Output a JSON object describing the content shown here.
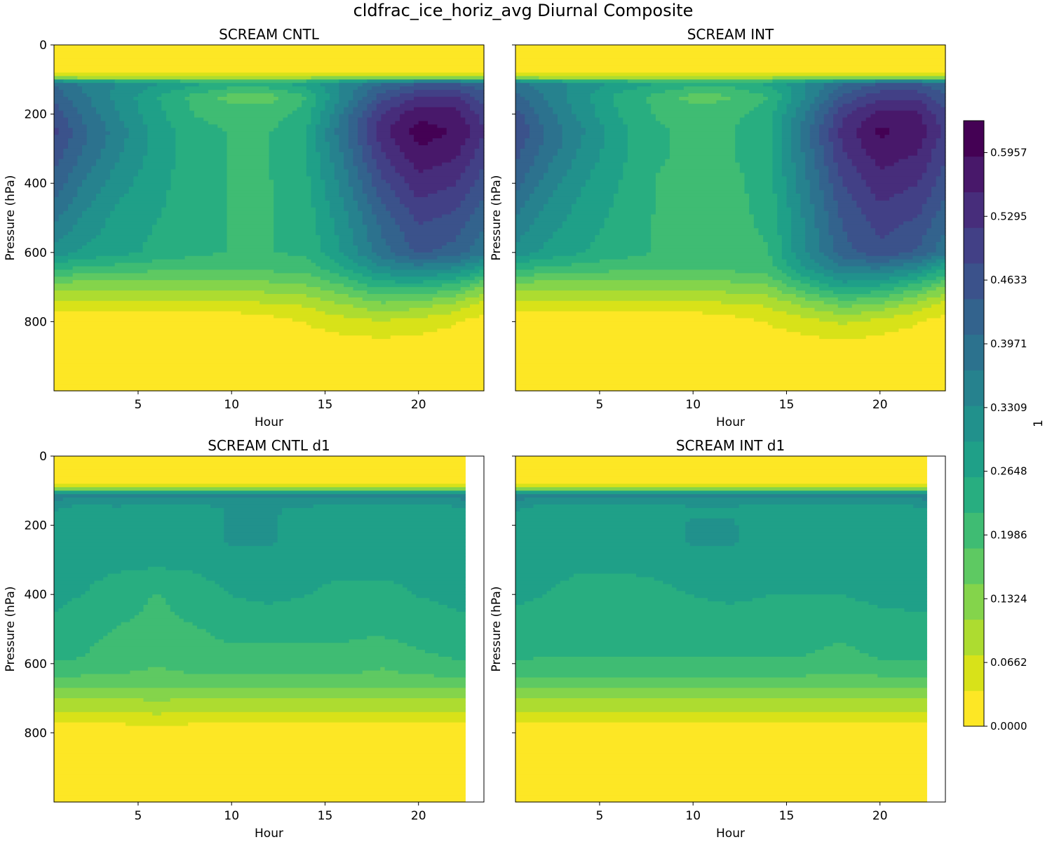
{
  "figure": {
    "suptitle": "cldfrac_ice_horiz_avg Diurnal Composite"
  },
  "chart_data": [
    {
      "type": "heatmap",
      "title": "SCREAM CNTL",
      "xlabel": "Hour",
      "ylabel": "Pressure (hPa)",
      "x_ticks": [
        5,
        10,
        15,
        20
      ],
      "y_ticks": [
        0,
        200,
        400,
        600,
        800
      ],
      "xlim": [
        0.5,
        23.5
      ],
      "ylim": [
        1000,
        0
      ],
      "data_xmax": 23.5,
      "x": [
        0.5,
        2,
        4,
        6,
        8,
        10,
        12,
        14,
        16,
        18,
        20,
        22,
        23.5
      ],
      "p": [
        0,
        80,
        95,
        110,
        150,
        200,
        250,
        300,
        400,
        500,
        600,
        650,
        700,
        750,
        800,
        900,
        1000
      ],
      "z": [
        [
          0.0,
          0.0,
          0.0,
          0.0,
          0.0,
          0.0,
          0.0,
          0.0,
          0.0,
          0.0,
          0.0,
          0.0,
          0.0
        ],
        [
          0.02,
          0.02,
          0.02,
          0.02,
          0.02,
          0.02,
          0.02,
          0.02,
          0.02,
          0.02,
          0.02,
          0.02,
          0.02
        ],
        [
          0.12,
          0.11,
          0.11,
          0.1,
          0.1,
          0.1,
          0.1,
          0.11,
          0.12,
          0.13,
          0.13,
          0.13,
          0.12
        ],
        [
          0.4,
          0.36,
          0.33,
          0.3,
          0.27,
          0.25,
          0.25,
          0.28,
          0.34,
          0.4,
          0.44,
          0.44,
          0.42
        ],
        [
          0.43,
          0.38,
          0.32,
          0.26,
          0.21,
          0.17,
          0.17,
          0.22,
          0.34,
          0.46,
          0.52,
          0.52,
          0.46
        ],
        [
          0.47,
          0.4,
          0.33,
          0.27,
          0.22,
          0.2,
          0.2,
          0.24,
          0.38,
          0.52,
          0.58,
          0.57,
          0.5
        ],
        [
          0.49,
          0.42,
          0.35,
          0.28,
          0.24,
          0.22,
          0.22,
          0.26,
          0.4,
          0.54,
          0.61,
          0.59,
          0.52
        ],
        [
          0.47,
          0.41,
          0.34,
          0.28,
          0.24,
          0.22,
          0.22,
          0.26,
          0.38,
          0.52,
          0.59,
          0.57,
          0.5
        ],
        [
          0.43,
          0.37,
          0.31,
          0.27,
          0.24,
          0.22,
          0.22,
          0.25,
          0.35,
          0.47,
          0.54,
          0.52,
          0.46
        ],
        [
          0.38,
          0.33,
          0.28,
          0.26,
          0.24,
          0.22,
          0.22,
          0.24,
          0.32,
          0.42,
          0.49,
          0.47,
          0.42
        ],
        [
          0.32,
          0.29,
          0.27,
          0.25,
          0.23,
          0.22,
          0.22,
          0.23,
          0.3,
          0.39,
          0.45,
          0.43,
          0.38
        ],
        [
          0.22,
          0.21,
          0.2,
          0.19,
          0.19,
          0.19,
          0.19,
          0.2,
          0.25,
          0.32,
          0.34,
          0.32,
          0.26
        ],
        [
          0.12,
          0.12,
          0.12,
          0.12,
          0.12,
          0.12,
          0.13,
          0.14,
          0.18,
          0.23,
          0.23,
          0.2,
          0.14
        ],
        [
          0.06,
          0.06,
          0.06,
          0.06,
          0.06,
          0.06,
          0.07,
          0.08,
          0.11,
          0.14,
          0.13,
          0.1,
          0.06
        ],
        [
          0.01,
          0.01,
          0.01,
          0.01,
          0.01,
          0.01,
          0.02,
          0.04,
          0.06,
          0.07,
          0.06,
          0.04,
          0.02
        ],
        [
          0.0,
          0.0,
          0.0,
          0.0,
          0.0,
          0.0,
          0.0,
          0.0,
          0.0,
          0.0,
          0.0,
          0.0,
          0.0
        ],
        [
          0.0,
          0.0,
          0.0,
          0.0,
          0.0,
          0.0,
          0.0,
          0.0,
          0.0,
          0.0,
          0.0,
          0.0,
          0.0
        ]
      ]
    },
    {
      "type": "heatmap",
      "title": "SCREAM INT",
      "xlabel": "Hour",
      "ylabel": "Pressure (hPa)",
      "x_ticks": [
        5,
        10,
        15,
        20
      ],
      "y_ticks": [
        0,
        200,
        400,
        600,
        800
      ],
      "xlim": [
        0.5,
        23.5
      ],
      "ylim": [
        1000,
        0
      ],
      "data_xmax": 23.5,
      "x": [
        0.5,
        2,
        4,
        6,
        8,
        10,
        12,
        14,
        16,
        18,
        20,
        22,
        23.5
      ],
      "p": [
        0,
        80,
        95,
        110,
        150,
        200,
        250,
        300,
        400,
        500,
        600,
        650,
        700,
        750,
        800,
        900,
        1000
      ],
      "z": [
        [
          0.0,
          0.0,
          0.0,
          0.0,
          0.0,
          0.0,
          0.0,
          0.0,
          0.0,
          0.0,
          0.0,
          0.0,
          0.0
        ],
        [
          0.02,
          0.02,
          0.02,
          0.02,
          0.02,
          0.02,
          0.02,
          0.02,
          0.02,
          0.02,
          0.02,
          0.02,
          0.02
        ],
        [
          0.12,
          0.11,
          0.11,
          0.1,
          0.1,
          0.1,
          0.1,
          0.11,
          0.12,
          0.13,
          0.13,
          0.13,
          0.12
        ],
        [
          0.39,
          0.35,
          0.32,
          0.29,
          0.26,
          0.24,
          0.24,
          0.27,
          0.33,
          0.4,
          0.44,
          0.44,
          0.41
        ],
        [
          0.42,
          0.37,
          0.31,
          0.25,
          0.21,
          0.17,
          0.18,
          0.22,
          0.33,
          0.45,
          0.51,
          0.51,
          0.45
        ],
        [
          0.46,
          0.39,
          0.32,
          0.26,
          0.22,
          0.2,
          0.21,
          0.24,
          0.37,
          0.51,
          0.57,
          0.56,
          0.49
        ],
        [
          0.48,
          0.41,
          0.34,
          0.27,
          0.23,
          0.21,
          0.22,
          0.25,
          0.39,
          0.53,
          0.6,
          0.58,
          0.51
        ],
        [
          0.46,
          0.4,
          0.33,
          0.27,
          0.23,
          0.21,
          0.22,
          0.25,
          0.38,
          0.52,
          0.58,
          0.56,
          0.49
        ],
        [
          0.42,
          0.36,
          0.3,
          0.26,
          0.22,
          0.21,
          0.21,
          0.24,
          0.36,
          0.48,
          0.54,
          0.52,
          0.46
        ],
        [
          0.37,
          0.32,
          0.28,
          0.25,
          0.22,
          0.21,
          0.21,
          0.23,
          0.34,
          0.45,
          0.5,
          0.48,
          0.42
        ],
        [
          0.32,
          0.29,
          0.26,
          0.24,
          0.22,
          0.21,
          0.21,
          0.22,
          0.33,
          0.43,
          0.47,
          0.44,
          0.38
        ],
        [
          0.22,
          0.21,
          0.2,
          0.19,
          0.19,
          0.19,
          0.19,
          0.2,
          0.29,
          0.36,
          0.36,
          0.32,
          0.25
        ],
        [
          0.12,
          0.12,
          0.12,
          0.12,
          0.12,
          0.12,
          0.13,
          0.14,
          0.21,
          0.27,
          0.25,
          0.2,
          0.14
        ],
        [
          0.06,
          0.06,
          0.06,
          0.06,
          0.06,
          0.06,
          0.07,
          0.08,
          0.12,
          0.16,
          0.14,
          0.1,
          0.06
        ],
        [
          0.01,
          0.01,
          0.01,
          0.01,
          0.01,
          0.01,
          0.02,
          0.04,
          0.06,
          0.08,
          0.06,
          0.04,
          0.02
        ],
        [
          0.0,
          0.0,
          0.0,
          0.0,
          0.0,
          0.0,
          0.0,
          0.0,
          0.0,
          0.0,
          0.0,
          0.0,
          0.0
        ],
        [
          0.0,
          0.0,
          0.0,
          0.0,
          0.0,
          0.0,
          0.0,
          0.0,
          0.0,
          0.0,
          0.0,
          0.0,
          0.0
        ]
      ]
    },
    {
      "type": "heatmap",
      "title": "SCREAM CNTL d1",
      "xlabel": "Hour",
      "ylabel": "Pressure (hPa)",
      "x_ticks": [
        5,
        10,
        15,
        20
      ],
      "y_ticks": [
        0,
        200,
        400,
        600,
        800
      ],
      "xlim": [
        0.5,
        23.5
      ],
      "ylim": [
        1000,
        0
      ],
      "data_xmax": 22.5,
      "x": [
        0.5,
        2,
        4,
        6,
        8,
        10,
        12,
        14,
        16,
        18,
        20,
        22.5
      ],
      "p": [
        0,
        80,
        95,
        110,
        150,
        200,
        250,
        300,
        400,
        500,
        600,
        650,
        700,
        750,
        800,
        900,
        1000
      ],
      "z": [
        [
          0.0,
          0.0,
          0.0,
          0.0,
          0.0,
          0.0,
          0.0,
          0.0,
          0.0,
          0.0,
          0.0,
          0.0
        ],
        [
          0.02,
          0.02,
          0.02,
          0.02,
          0.02,
          0.02,
          0.02,
          0.02,
          0.02,
          0.02,
          0.02,
          0.02
        ],
        [
          0.12,
          0.12,
          0.12,
          0.12,
          0.12,
          0.12,
          0.12,
          0.12,
          0.12,
          0.12,
          0.12,
          0.12
        ],
        [
          0.36,
          0.35,
          0.35,
          0.35,
          0.35,
          0.35,
          0.35,
          0.35,
          0.35,
          0.35,
          0.35,
          0.36
        ],
        [
          0.3,
          0.28,
          0.29,
          0.27,
          0.28,
          0.3,
          0.3,
          0.29,
          0.28,
          0.28,
          0.28,
          0.29
        ],
        [
          0.29,
          0.27,
          0.28,
          0.26,
          0.28,
          0.3,
          0.3,
          0.28,
          0.28,
          0.29,
          0.28,
          0.29
        ],
        [
          0.28,
          0.27,
          0.28,
          0.26,
          0.28,
          0.3,
          0.3,
          0.28,
          0.28,
          0.29,
          0.28,
          0.29
        ],
        [
          0.28,
          0.27,
          0.27,
          0.27,
          0.27,
          0.28,
          0.28,
          0.27,
          0.27,
          0.27,
          0.27,
          0.28
        ],
        [
          0.27,
          0.26,
          0.24,
          0.22,
          0.24,
          0.26,
          0.27,
          0.26,
          0.25,
          0.25,
          0.26,
          0.27
        ],
        [
          0.25,
          0.23,
          0.22,
          0.21,
          0.22,
          0.23,
          0.23,
          0.23,
          0.23,
          0.23,
          0.24,
          0.25
        ],
        [
          0.22,
          0.22,
          0.21,
          0.19,
          0.21,
          0.21,
          0.21,
          0.21,
          0.21,
          0.19,
          0.21,
          0.22
        ],
        [
          0.18,
          0.17,
          0.17,
          0.16,
          0.17,
          0.17,
          0.17,
          0.17,
          0.17,
          0.17,
          0.17,
          0.18
        ],
        [
          0.11,
          0.11,
          0.11,
          0.12,
          0.11,
          0.11,
          0.11,
          0.11,
          0.11,
          0.11,
          0.11,
          0.11
        ],
        [
          0.06,
          0.06,
          0.06,
          0.07,
          0.06,
          0.06,
          0.06,
          0.06,
          0.06,
          0.06,
          0.06,
          0.06
        ],
        [
          0.01,
          0.01,
          0.01,
          0.02,
          0.01,
          0.01,
          0.01,
          0.01,
          0.01,
          0.01,
          0.01,
          0.01
        ],
        [
          0.0,
          0.0,
          0.0,
          0.0,
          0.0,
          0.0,
          0.0,
          0.0,
          0.0,
          0.0,
          0.0,
          0.0
        ],
        [
          0.0,
          0.0,
          0.0,
          0.0,
          0.0,
          0.0,
          0.0,
          0.0,
          0.0,
          0.0,
          0.0,
          0.0
        ]
      ]
    },
    {
      "type": "heatmap",
      "title": "SCREAM INT d1",
      "xlabel": "Hour",
      "ylabel": "Pressure (hPa)",
      "x_ticks": [
        5,
        10,
        15,
        20
      ],
      "y_ticks": [
        0,
        200,
        400,
        600,
        800
      ],
      "xlim": [
        0.5,
        23.5
      ],
      "ylim": [
        1000,
        0
      ],
      "data_xmax": 22.5,
      "x": [
        0.5,
        2,
        4,
        6,
        8,
        10,
        12,
        14,
        16,
        18,
        20,
        22.5
      ],
      "p": [
        0,
        80,
        95,
        110,
        150,
        200,
        250,
        300,
        400,
        500,
        600,
        650,
        700,
        750,
        800,
        900,
        1000
      ],
      "z": [
        [
          0.0,
          0.0,
          0.0,
          0.0,
          0.0,
          0.0,
          0.0,
          0.0,
          0.0,
          0.0,
          0.0,
          0.0
        ],
        [
          0.02,
          0.02,
          0.02,
          0.02,
          0.02,
          0.02,
          0.02,
          0.02,
          0.02,
          0.02,
          0.02,
          0.02
        ],
        [
          0.12,
          0.12,
          0.12,
          0.12,
          0.12,
          0.12,
          0.12,
          0.12,
          0.12,
          0.12,
          0.12,
          0.12
        ],
        [
          0.36,
          0.35,
          0.35,
          0.35,
          0.35,
          0.35,
          0.35,
          0.35,
          0.35,
          0.35,
          0.35,
          0.36
        ],
        [
          0.3,
          0.28,
          0.28,
          0.28,
          0.28,
          0.29,
          0.29,
          0.28,
          0.28,
          0.28,
          0.28,
          0.29
        ],
        [
          0.29,
          0.28,
          0.28,
          0.28,
          0.28,
          0.3,
          0.3,
          0.28,
          0.28,
          0.28,
          0.28,
          0.29
        ],
        [
          0.28,
          0.28,
          0.28,
          0.27,
          0.28,
          0.3,
          0.3,
          0.28,
          0.28,
          0.28,
          0.28,
          0.28
        ],
        [
          0.28,
          0.28,
          0.27,
          0.27,
          0.27,
          0.28,
          0.28,
          0.27,
          0.27,
          0.27,
          0.27,
          0.28
        ],
        [
          0.27,
          0.26,
          0.24,
          0.24,
          0.25,
          0.26,
          0.27,
          0.26,
          0.26,
          0.26,
          0.27,
          0.27
        ],
        [
          0.24,
          0.23,
          0.23,
          0.23,
          0.23,
          0.23,
          0.23,
          0.23,
          0.23,
          0.23,
          0.24,
          0.25
        ],
        [
          0.22,
          0.22,
          0.22,
          0.22,
          0.22,
          0.22,
          0.22,
          0.22,
          0.22,
          0.21,
          0.22,
          0.22
        ],
        [
          0.18,
          0.17,
          0.17,
          0.17,
          0.17,
          0.17,
          0.17,
          0.17,
          0.17,
          0.17,
          0.17,
          0.18
        ],
        [
          0.11,
          0.11,
          0.11,
          0.11,
          0.11,
          0.11,
          0.11,
          0.11,
          0.11,
          0.11,
          0.11,
          0.11
        ],
        [
          0.06,
          0.06,
          0.06,
          0.06,
          0.06,
          0.06,
          0.06,
          0.06,
          0.06,
          0.06,
          0.06,
          0.06
        ],
        [
          0.01,
          0.01,
          0.01,
          0.01,
          0.01,
          0.01,
          0.01,
          0.01,
          0.01,
          0.01,
          0.01,
          0.01
        ],
        [
          0.0,
          0.0,
          0.0,
          0.0,
          0.0,
          0.0,
          0.0,
          0.0,
          0.0,
          0.0,
          0.0,
          0.0
        ],
        [
          0.0,
          0.0,
          0.0,
          0.0,
          0.0,
          0.0,
          0.0,
          0.0,
          0.0,
          0.0,
          0.0,
          0.0
        ]
      ]
    }
  ],
  "colorbar": {
    "label": "1",
    "range": [
      0.0,
      0.6288
    ],
    "levels": 19,
    "tick_values": [
      0.0,
      0.0662,
      0.1324,
      0.1986,
      0.2648,
      0.3309,
      0.3971,
      0.4633,
      0.5295,
      0.5957
    ],
    "tick_labels": [
      "0.0000",
      "0.0662",
      "0.1324",
      "0.1986",
      "0.2648",
      "0.3309",
      "0.3971",
      "0.4633",
      "0.5295",
      "0.5957"
    ],
    "colormap": "viridis_r",
    "colors": [
      "#fde725",
      "#d8e219",
      "#addc30",
      "#84d44b",
      "#5ec962",
      "#3fbc73",
      "#28ae80",
      "#1fa088",
      "#21918c",
      "#26828e",
      "#2c728e",
      "#33638d",
      "#3b528b",
      "#424086",
      "#472d7b",
      "#48186a",
      "#440154"
    ]
  }
}
